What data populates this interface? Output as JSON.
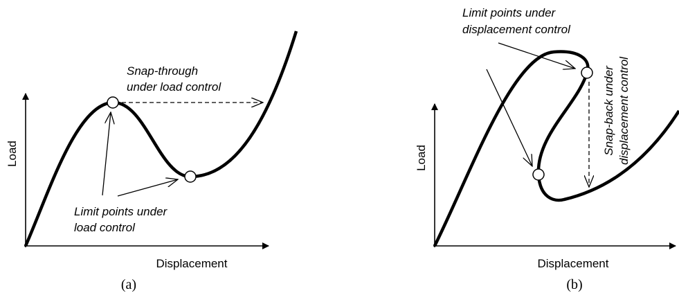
{
  "panels": [
    {
      "label": "(a)",
      "y_axis": "Load",
      "x_axis": "Displacement",
      "annotations": [
        [
          "Snap-through",
          "under load control"
        ],
        [
          "Limit points under",
          "load control"
        ]
      ]
    },
    {
      "label": "(b)",
      "y_axis": "Load",
      "x_axis": "Displacement",
      "annotations": [
        [
          "Limit points under",
          "displacement control"
        ],
        [
          "Snap-back under",
          "displacement control"
        ]
      ]
    }
  ]
}
